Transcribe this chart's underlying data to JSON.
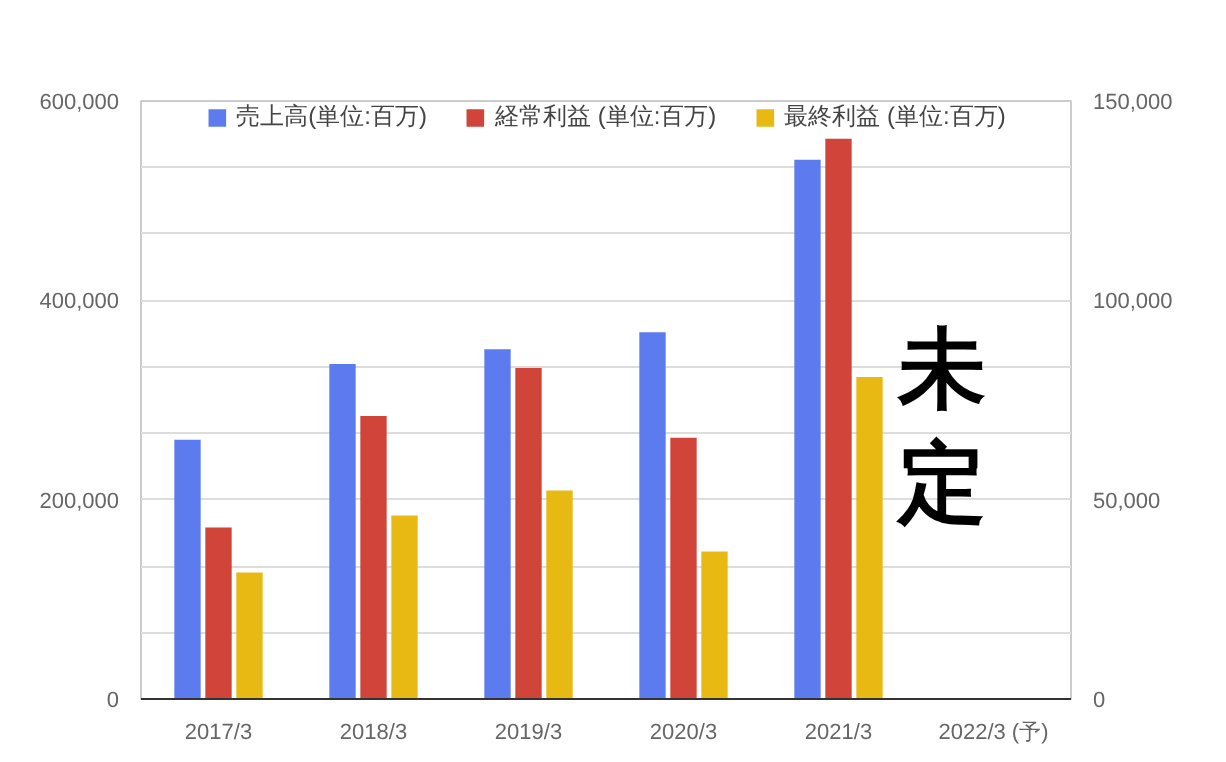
{
  "chart_data": {
    "type": "bar",
    "categories": [
      "2017/3",
      "2018/3",
      "2019/3",
      "2020/3",
      "2021/3",
      "2022/3 (予)"
    ],
    "series": [
      {
        "name": "売上高(単位:百万)",
        "color": "#5b7bef",
        "values": [
          260000,
          336000,
          351000,
          368000,
          541000,
          null
        ]
      },
      {
        "name": "経常利益 (単位:百万)",
        "color": "#d0443a",
        "axis": "y2",
        "values": [
          43000,
          71000,
          83000,
          65500,
          140500,
          null
        ]
      },
      {
        "name": "最終利益 (単位:百万)",
        "color": "#e8b912",
        "axis": "y2",
        "values": [
          31700,
          46000,
          52300,
          37000,
          80800,
          null
        ]
      }
    ],
    "ylim": [
      0,
      600000
    ],
    "yticks": [
      0,
      {
        "value": 66667,
        "label": null
      },
      {
        "value": 133333,
        "label": null
      },
      {
        "value": 200000,
        "label": "200,000"
      },
      {
        "value": 266667,
        "label": null
      },
      {
        "value": 333333,
        "label": null
      },
      {
        "value": 400000,
        "label": "400,000"
      },
      {
        "value": 466667,
        "label": null
      },
      {
        "value": 533333,
        "label": null
      },
      {
        "value": 600000,
        "label": "600,000"
      }
    ],
    "y2lim": [
      0,
      150000
    ],
    "y2ticks": [
      0,
      {
        "value": 50000,
        "label": "50,000"
      },
      {
        "value": 100000,
        "label": "100,000"
      },
      {
        "value": 150000,
        "label": "150,000"
      }
    ],
    "annotations": [
      "未定"
    ],
    "grid": "y",
    "legend": "top"
  }
}
